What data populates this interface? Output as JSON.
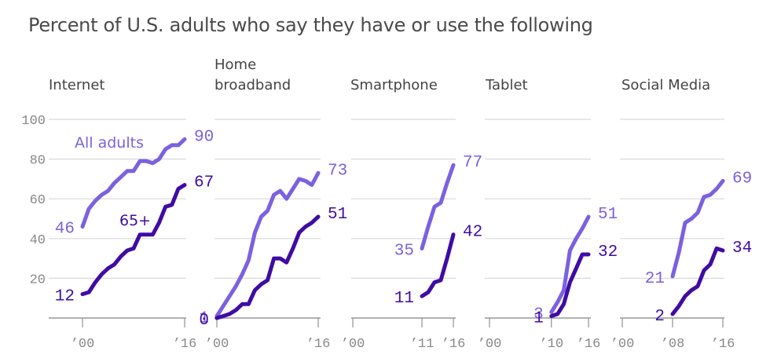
{
  "title": "Percent of U.S. adults who say they have or use the following",
  "colors": {
    "all_adults": "#7b61e0",
    "seniors": "#3f0ca4",
    "grid": "#d9d9d9",
    "axis": "#999999"
  },
  "chart_data": [
    {
      "type": "line",
      "title": "Internet",
      "title_lines": [
        "Internet"
      ],
      "ylim": [
        0,
        100
      ],
      "yticks": [
        20,
        40,
        60,
        80,
        100
      ],
      "xlim": [
        2000,
        2016
      ],
      "xticks": [
        {
          "year": 2000,
          "label": "’00"
        },
        {
          "year": 2016,
          "label": "’16"
        }
      ],
      "series": [
        {
          "name": "All adults",
          "color_key": "all_adults",
          "start_label": "46",
          "end_label": "90",
          "x": [
            2000,
            2001,
            2002,
            2003,
            2004,
            2005,
            2006,
            2007,
            2008,
            2009,
            2010,
            2011,
            2012,
            2013,
            2014,
            2015,
            2016
          ],
          "values": [
            46,
            55,
            59,
            62,
            64,
            68,
            71,
            74,
            74,
            79,
            79,
            78,
            80,
            85,
            87,
            87,
            90
          ]
        },
        {
          "name": "65+",
          "color_key": "seniors",
          "start_label": "12",
          "end_label": "67",
          "x": [
            2000,
            2001,
            2002,
            2003,
            2004,
            2005,
            2006,
            2007,
            2008,
            2009,
            2010,
            2011,
            2012,
            2013,
            2014,
            2015,
            2016
          ],
          "values": [
            12,
            13,
            18,
            22,
            25,
            27,
            31,
            34,
            35,
            42,
            42,
            42,
            48,
            56,
            57,
            65,
            67
          ]
        }
      ],
      "annotations": [
        "All adults",
        "65+"
      ]
    },
    {
      "type": "line",
      "title": "Home broadband",
      "title_lines": [
        "Home",
        "broadband"
      ],
      "ylim": [
        0,
        100
      ],
      "xlim": [
        2000,
        2016
      ],
      "xticks": [
        {
          "year": 2000,
          "label": "’00"
        },
        {
          "year": 2016,
          "label": "’16"
        }
      ],
      "series": [
        {
          "name": "All adults",
          "color_key": "all_adults",
          "start_label": "1",
          "end_label": "73",
          "x": [
            2000,
            2001,
            2002,
            2003,
            2004,
            2005,
            2006,
            2007,
            2008,
            2009,
            2010,
            2011,
            2012,
            2013,
            2014,
            2015,
            2016
          ],
          "values": [
            1,
            6,
            11,
            16,
            22,
            29,
            43,
            51,
            54,
            62,
            64,
            60,
            65,
            70,
            69,
            67,
            73
          ]
        },
        {
          "name": "65+",
          "color_key": "seniors",
          "start_label": "0",
          "end_label": "51",
          "x": [
            2000,
            2001,
            2002,
            2003,
            2004,
            2005,
            2006,
            2007,
            2008,
            2009,
            2010,
            2011,
            2012,
            2013,
            2014,
            2015,
            2016
          ],
          "values": [
            0,
            1,
            2,
            4,
            7,
            7,
            14,
            17,
            19,
            30,
            30,
            28,
            35,
            43,
            46,
            48,
            51
          ]
        }
      ]
    },
    {
      "type": "line",
      "title": "Smartphone",
      "title_lines": [
        "Smartphone"
      ],
      "ylim": [
        0,
        100
      ],
      "xlim": [
        2000,
        2016
      ],
      "xticks": [
        {
          "year": 2000,
          "label": "’00"
        },
        {
          "year": 2011,
          "label": "’11"
        },
        {
          "year": 2016,
          "label": "’16"
        }
      ],
      "series": [
        {
          "name": "All adults",
          "color_key": "all_adults",
          "start_label": "35",
          "end_label": "77",
          "x": [
            2011,
            2012,
            2013,
            2014,
            2015,
            2016
          ],
          "values": [
            35,
            46,
            56,
            58,
            68,
            77
          ]
        },
        {
          "name": "65+",
          "color_key": "seniors",
          "start_label": "11",
          "end_label": "42",
          "x": [
            2011,
            2012,
            2013,
            2014,
            2015,
            2016
          ],
          "values": [
            11,
            13,
            18,
            19,
            30,
            42
          ]
        }
      ]
    },
    {
      "type": "line",
      "title": "Tablet",
      "title_lines": [
        "Tablet"
      ],
      "ylim": [
        0,
        100
      ],
      "xlim": [
        2000,
        2016
      ],
      "xticks": [
        {
          "year": 2000,
          "label": "’00"
        },
        {
          "year": 2010,
          "label": "’10"
        },
        {
          "year": 2016,
          "label": "’16"
        }
      ],
      "series": [
        {
          "name": "All adults",
          "color_key": "all_adults",
          "start_label": "3",
          "end_label": "51",
          "x": [
            2010,
            2011,
            2012,
            2013,
            2014,
            2015,
            2016
          ],
          "values": [
            3,
            8,
            14,
            34,
            40,
            45,
            51
          ]
        },
        {
          "name": "65+",
          "color_key": "seniors",
          "start_label": "1",
          "end_label": "32",
          "x": [
            2010,
            2011,
            2012,
            2013,
            2014,
            2015,
            2016
          ],
          "values": [
            1,
            2,
            7,
            18,
            25,
            32,
            32
          ]
        }
      ]
    },
    {
      "type": "line",
      "title": "Social Media",
      "title_lines": [
        "Social Media"
      ],
      "ylim": [
        0,
        100
      ],
      "xlim": [
        2000,
        2016
      ],
      "xticks": [
        {
          "year": 2000,
          "label": "’00"
        },
        {
          "year": 2008,
          "label": "’08"
        },
        {
          "year": 2016,
          "label": "’16"
        }
      ],
      "series": [
        {
          "name": "All adults",
          "color_key": "all_adults",
          "start_label": "21",
          "end_label": "69",
          "x": [
            2008,
            2009,
            2010,
            2011,
            2012,
            2013,
            2014,
            2015,
            2016
          ],
          "values": [
            21,
            33,
            48,
            50,
            53,
            61,
            62,
            65,
            69
          ]
        },
        {
          "name": "65+",
          "color_key": "seniors",
          "start_label": "2",
          "end_label": "34",
          "x": [
            2008,
            2009,
            2010,
            2011,
            2012,
            2013,
            2014,
            2015,
            2016
          ],
          "values": [
            2,
            6,
            11,
            14,
            16,
            24,
            27,
            35,
            34
          ]
        }
      ]
    }
  ]
}
